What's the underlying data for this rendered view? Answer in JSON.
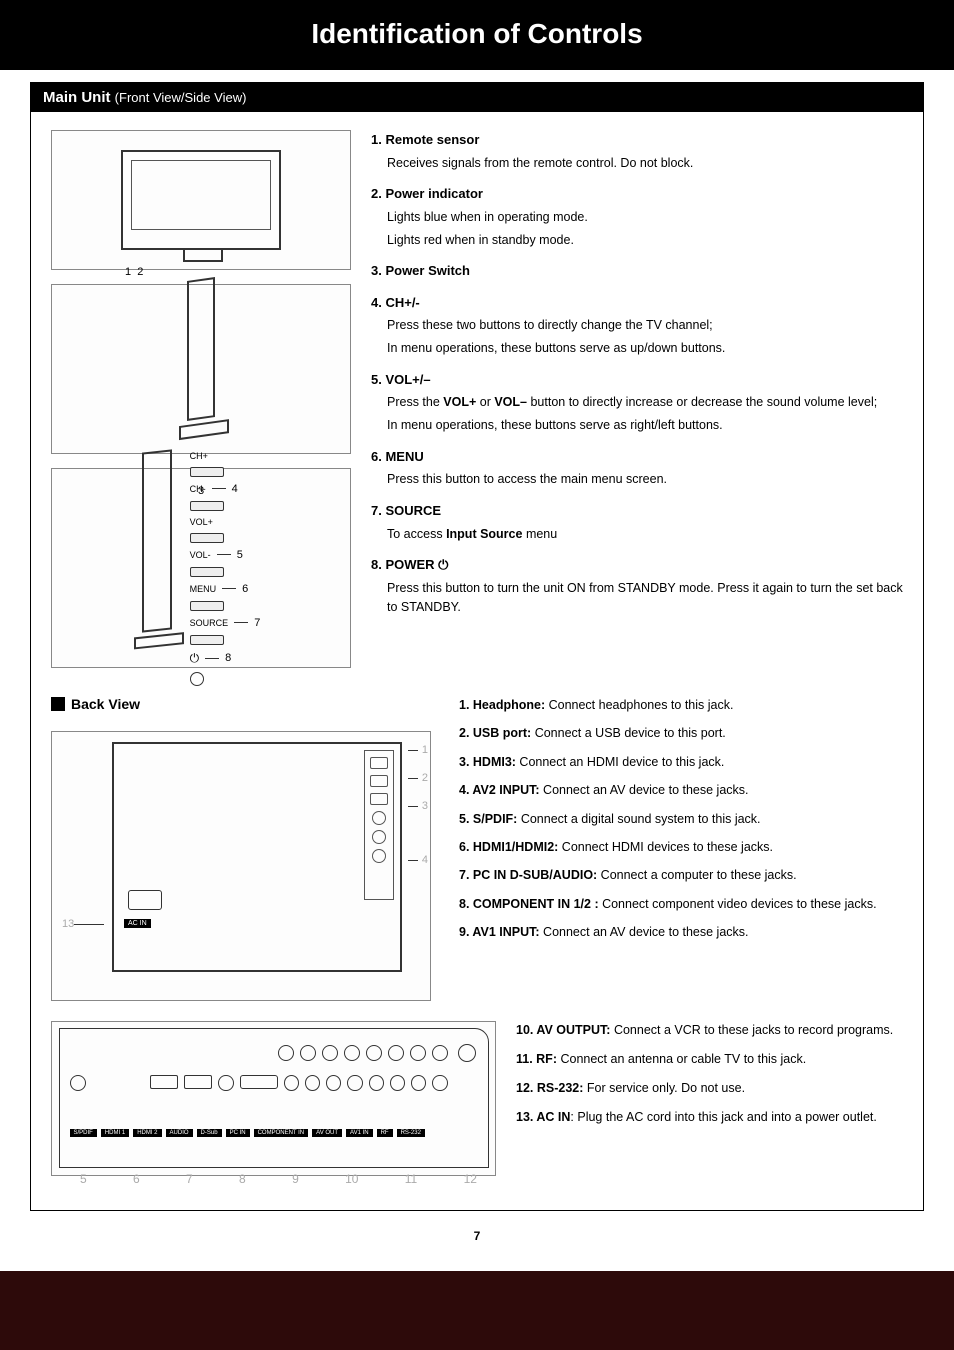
{
  "header": {
    "title": "Identification of Controls"
  },
  "section_front": {
    "title": "Main Unit",
    "subtitle": "(Front View/Side View)",
    "side_buttons": {
      "labels": [
        "CH+",
        "CH-",
        "VOL+",
        "VOL-",
        "MENU",
        "SOURCE"
      ],
      "power_glyph": "⏻",
      "callouts": {
        "ch": "4",
        "vol": "5",
        "menu": "6",
        "source": "7",
        "power": "8"
      }
    },
    "front_labels": {
      "one": "1",
      "two": "2"
    },
    "side1_label": "3",
    "items": [
      {
        "num": "1.",
        "title": "Remote sensor",
        "desc": [
          "Receives signals from the remote control. Do not block."
        ]
      },
      {
        "num": "2.",
        "title": "Power indicator",
        "desc": [
          "Lights blue when in operating mode.",
          "Lights red when in standby mode."
        ]
      },
      {
        "num": "3.",
        "title": "Power Switch",
        "desc": []
      },
      {
        "num": "4.",
        "title": "CH+/-",
        "desc": [
          "Press these two buttons to directly change the TV channel;",
          "In menu operations, these buttons serve as up/down buttons."
        ]
      },
      {
        "num": "5.",
        "title": "VOL+/–",
        "desc": [
          "Press the <b>VOL+</b> or <b>VOL–</b> button to directly increase or decrease the sound volume level;",
          "In menu operations, these buttons serve as right/left buttons."
        ]
      },
      {
        "num": "6.",
        "title": "MENU",
        "desc": [
          "Press this button to access the main menu screen."
        ]
      },
      {
        "num": "7.",
        "title": "SOURCE",
        "desc": [
          "To access <b>Input Source</b> menu"
        ]
      },
      {
        "num": "8.",
        "title": "POWER ⏻",
        "desc": [
          "Press this button to turn the unit ON from STANDBY mode. Press it again to turn the set back to STANDBY."
        ]
      }
    ]
  },
  "section_back": {
    "title": "Back View",
    "strip_callouts": [
      "1",
      "2",
      "3",
      "4"
    ],
    "acin_callout": "13",
    "acin_label": "AC IN",
    "items_upper": [
      {
        "t": "1. Headphone:",
        "d": " Connect headphones to this jack."
      },
      {
        "t": "2. USB port:",
        "d": " Connect a USB device to this port."
      },
      {
        "t": "3. HDMI3:",
        "d": " Connect an HDMI device to this jack."
      },
      {
        "t": "4. AV2 INPUT:",
        "d": " Connect an AV device to these jacks."
      },
      {
        "t": "5. S/PDIF:",
        "d": " Connect a digital sound system to this jack."
      },
      {
        "t": "6. HDMI1/HDMI2:",
        "d": " Connect HDMI devices to these jacks."
      },
      {
        "t": "7. PC IN D-SUB/AUDIO:",
        "d": " Connect a computer to these jacks."
      },
      {
        "t": "8. COMPONENT IN 1/2 :",
        "d": " Connect component video devices to these jacks."
      },
      {
        "t": "9. AV1 INPUT:",
        "d": " Connect an AV device to these jacks."
      }
    ],
    "bottom_port_labels": [
      "S/PDIF",
      "HDMI 1",
      "HDMI 2",
      "AUDIO",
      "D-Sub",
      "PC IN",
      "COMPONENT IN",
      "AV OUT",
      "AV1 IN",
      "RF",
      "RS-232"
    ],
    "bottom_nums": [
      "5",
      "6",
      "7",
      "8",
      "9",
      "10",
      "11",
      "12"
    ],
    "items_lower": [
      {
        "t": "10. AV OUTPUT:",
        "d": " Connect a VCR to these jacks to record programs."
      },
      {
        "t": "11. RF:",
        "d": " Connect an antenna or cable TV to this jack."
      },
      {
        "t": "12. RS-232:",
        "d": " For service only. Do not use."
      },
      {
        "t": "13. AC IN",
        "d": ": Plug the AC cord into this jack and into a power outlet."
      }
    ]
  },
  "page_number": "7",
  "colors": {
    "page_bg": "#2d0a0a",
    "black": "#000000",
    "white": "#ffffff",
    "grey_border": "#888888"
  }
}
